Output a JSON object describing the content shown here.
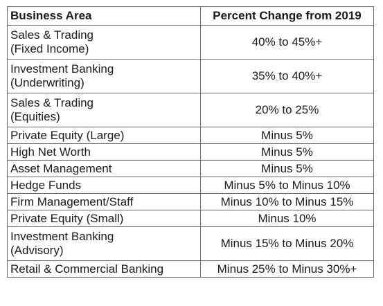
{
  "table": {
    "headers": [
      "Business Area",
      "Percent Change from 2019"
    ],
    "rows": [
      {
        "area": [
          "Sales & Trading",
          "(Fixed Income)"
        ],
        "change": "40% to 45%+"
      },
      {
        "area": [
          "Investment Banking",
          "(Underwriting)"
        ],
        "change": "35% to 40%+"
      },
      {
        "area": [
          "Sales & Trading",
          "(Equities)"
        ],
        "change": "20% to 25%"
      },
      {
        "area": [
          "Private Equity (Large)"
        ],
        "change": "Minus 5%"
      },
      {
        "area": [
          "High Net Worth"
        ],
        "change": "Minus 5%"
      },
      {
        "area": [
          "Asset Management"
        ],
        "change": "Minus 5%"
      },
      {
        "area": [
          "Hedge Funds"
        ],
        "change": "Minus 5% to Minus 10%"
      },
      {
        "area": [
          "Firm Management/Staff"
        ],
        "change": "Minus 10% to Minus 15%"
      },
      {
        "area": [
          "Private Equity (Small)"
        ],
        "change": "Minus 10%"
      },
      {
        "area": [
          "Investment Banking",
          "(Advisory)"
        ],
        "change": "Minus 15% to Minus 20%"
      },
      {
        "area": [
          "Retail & Commercial Banking"
        ],
        "change": "Minus 25% to Minus 30%+"
      }
    ]
  }
}
